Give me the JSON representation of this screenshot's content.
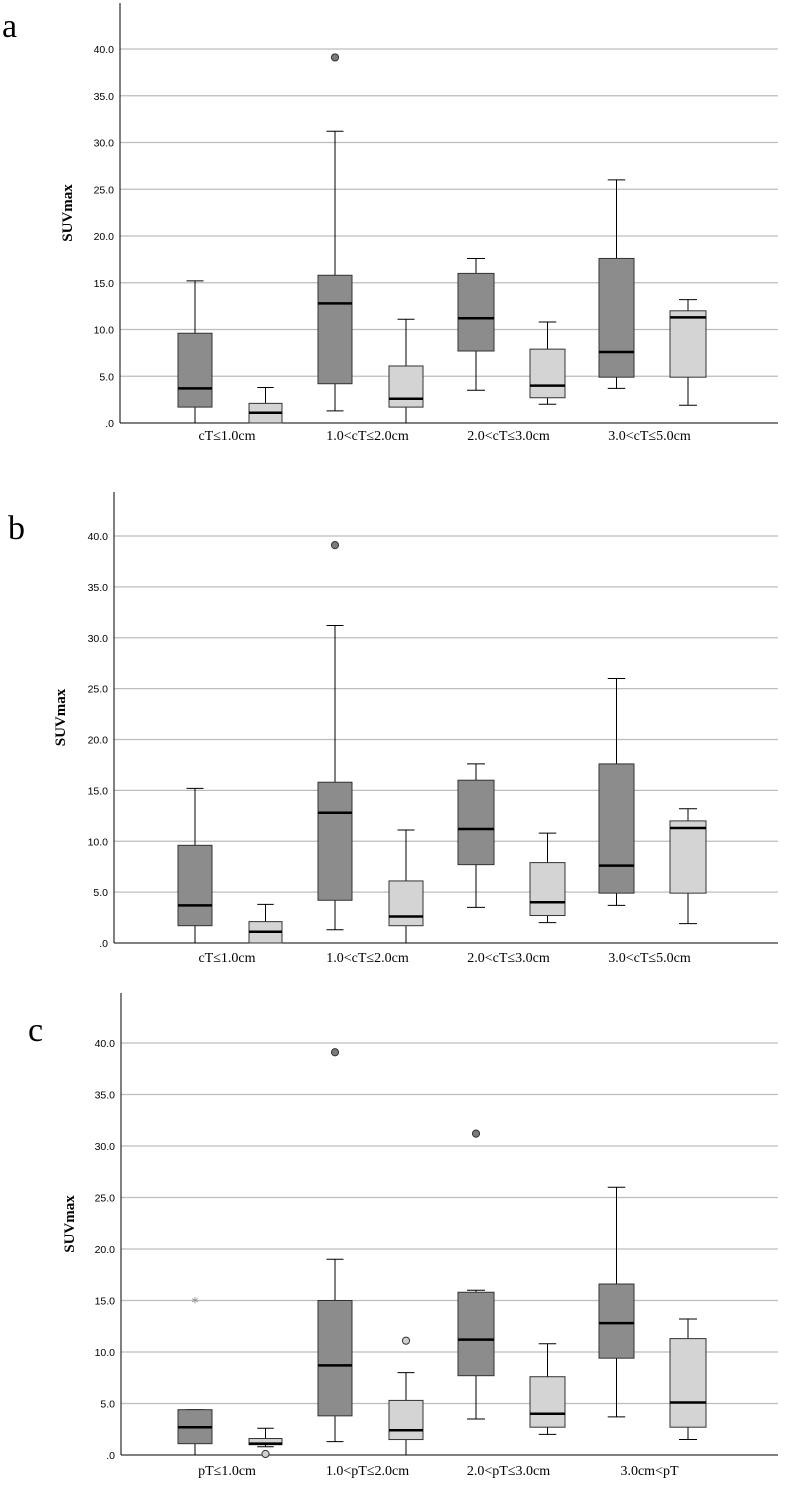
{
  "chart_data": [
    {
      "type": "boxplot",
      "panel_label": "a",
      "ylabel": "SUVmax",
      "ylim": [
        0,
        44
      ],
      "yticks": [
        ".0",
        "5.0",
        "10.0",
        "15.0",
        "20.0",
        "25.0",
        "30.0",
        "35.0",
        "40.0"
      ],
      "categories": [
        "cT≤1.0cm",
        "1.0<cT≤2.0cm",
        "2.0<cT≤3.0cm",
        "3.0<cT≤5.0cm"
      ],
      "series": [
        {
          "name": "dark",
          "color": "#8c8c8c",
          "boxes": [
            {
              "min": 0.0,
              "q1": 1.7,
              "median": 3.7,
              "q3": 9.6,
              "max": 15.2,
              "outliers": [],
              "extremes": []
            },
            {
              "min": 1.3,
              "q1": 4.2,
              "median": 12.8,
              "q3": 15.8,
              "max": 31.2,
              "outliers": [
                39.1
              ],
              "extremes": []
            },
            {
              "min": 3.5,
              "q1": 7.7,
              "median": 11.2,
              "q3": 16.0,
              "max": 17.6,
              "outliers": [],
              "extremes": []
            },
            {
              "min": 3.7,
              "q1": 4.9,
              "median": 7.6,
              "q3": 17.6,
              "max": 26.0,
              "outliers": [],
              "extremes": []
            }
          ]
        },
        {
          "name": "light",
          "color": "#d4d4d4",
          "boxes": [
            {
              "min": 0.0,
              "q1": 0.0,
              "median": 1.1,
              "q3": 2.1,
              "max": 3.8,
              "outliers": [],
              "extremes": []
            },
            {
              "min": 0.0,
              "q1": 1.7,
              "median": 2.6,
              "q3": 6.1,
              "max": 11.1,
              "outliers": [],
              "extremes": []
            },
            {
              "min": 2.0,
              "q1": 2.7,
              "median": 4.0,
              "q3": 7.9,
              "max": 10.8,
              "outliers": [],
              "extremes": []
            },
            {
              "min": 1.9,
              "q1": 4.9,
              "median": 11.3,
              "q3": 12.0,
              "max": 13.2,
              "outliers": [],
              "extremes": []
            }
          ]
        }
      ]
    },
    {
      "type": "boxplot",
      "panel_label": "b",
      "ylabel": "SUVmax",
      "ylim": [
        0,
        44
      ],
      "yticks": [
        ".0",
        "5.0",
        "10.0",
        "15.0",
        "20.0",
        "25.0",
        "30.0",
        "35.0",
        "40.0"
      ],
      "categories": [
        "cT≤1.0cm",
        "1.0<cT≤2.0cm",
        "2.0<cT≤3.0cm",
        "3.0<cT≤5.0cm"
      ],
      "series": [
        {
          "name": "dark",
          "color": "#8c8c8c",
          "boxes": [
            {
              "min": 0.0,
              "q1": 1.7,
              "median": 3.7,
              "q3": 9.6,
              "max": 15.2,
              "outliers": [],
              "extremes": []
            },
            {
              "min": 1.3,
              "q1": 4.2,
              "median": 12.8,
              "q3": 15.8,
              "max": 31.2,
              "outliers": [
                39.1
              ],
              "extremes": []
            },
            {
              "min": 3.5,
              "q1": 7.7,
              "median": 11.2,
              "q3": 16.0,
              "max": 17.6,
              "outliers": [],
              "extremes": []
            },
            {
              "min": 3.7,
              "q1": 4.9,
              "median": 7.6,
              "q3": 17.6,
              "max": 26.0,
              "outliers": [],
              "extremes": []
            }
          ]
        },
        {
          "name": "light",
          "color": "#d4d4d4",
          "boxes": [
            {
              "min": 0.0,
              "q1": 0.0,
              "median": 1.1,
              "q3": 2.1,
              "max": 3.8,
              "outliers": [],
              "extremes": []
            },
            {
              "min": 0.0,
              "q1": 1.7,
              "median": 2.6,
              "q3": 6.1,
              "max": 11.1,
              "outliers": [],
              "extremes": []
            },
            {
              "min": 2.0,
              "q1": 2.7,
              "median": 4.0,
              "q3": 7.9,
              "max": 10.8,
              "outliers": [],
              "extremes": []
            },
            {
              "min": 1.9,
              "q1": 4.9,
              "median": 11.3,
              "q3": 12.0,
              "max": 13.2,
              "outliers": [],
              "extremes": []
            }
          ]
        }
      ]
    },
    {
      "type": "boxplot",
      "panel_label": "c",
      "ylabel": "SUVmax",
      "ylim": [
        0,
        44
      ],
      "yticks": [
        ".0",
        "5.0",
        "10.0",
        "15.0",
        "20.0",
        "25.0",
        "30.0",
        "35.0",
        "40.0"
      ],
      "categories": [
        "pT≤1.0cm",
        "1.0<pT≤2.0cm",
        "2.0<pT≤3.0cm",
        "3.0cm<pT"
      ],
      "series": [
        {
          "name": "dark",
          "color": "#8c8c8c",
          "boxes": [
            {
              "min": 0.0,
              "q1": 1.1,
              "median": 2.7,
              "q3": 4.4,
              "max": 4.4,
              "outliers": [],
              "extremes": [
                14.8
              ]
            },
            {
              "min": 1.3,
              "q1": 3.8,
              "median": 8.7,
              "q3": 15.0,
              "max": 19.0,
              "outliers": [
                39.1
              ],
              "extremes": []
            },
            {
              "min": 3.5,
              "q1": 7.7,
              "median": 11.2,
              "q3": 15.8,
              "max": 16.0,
              "outliers": [
                31.2
              ],
              "extremes": []
            },
            {
              "min": 3.7,
              "q1": 9.4,
              "median": 12.8,
              "q3": 16.6,
              "max": 26.0,
              "outliers": [],
              "extremes": []
            }
          ]
        },
        {
          "name": "light",
          "color": "#d4d4d4",
          "boxes": [
            {
              "min": 0.8,
              "q1": 1.0,
              "median": 1.1,
              "q3": 1.6,
              "max": 2.6,
              "outliers": [
                0.1
              ],
              "extremes": []
            },
            {
              "min": 0.0,
              "q1": 1.5,
              "median": 2.4,
              "q3": 5.3,
              "max": 8.0,
              "outliers": [
                11.1
              ],
              "extremes": []
            },
            {
              "min": 2.0,
              "q1": 2.7,
              "median": 4.0,
              "q3": 7.6,
              "max": 10.8,
              "outliers": [],
              "extremes": []
            },
            {
              "min": 1.5,
              "q1": 2.7,
              "median": 5.1,
              "q3": 11.3,
              "max": 13.2,
              "outliers": [],
              "extremes": []
            }
          ]
        }
      ]
    }
  ]
}
